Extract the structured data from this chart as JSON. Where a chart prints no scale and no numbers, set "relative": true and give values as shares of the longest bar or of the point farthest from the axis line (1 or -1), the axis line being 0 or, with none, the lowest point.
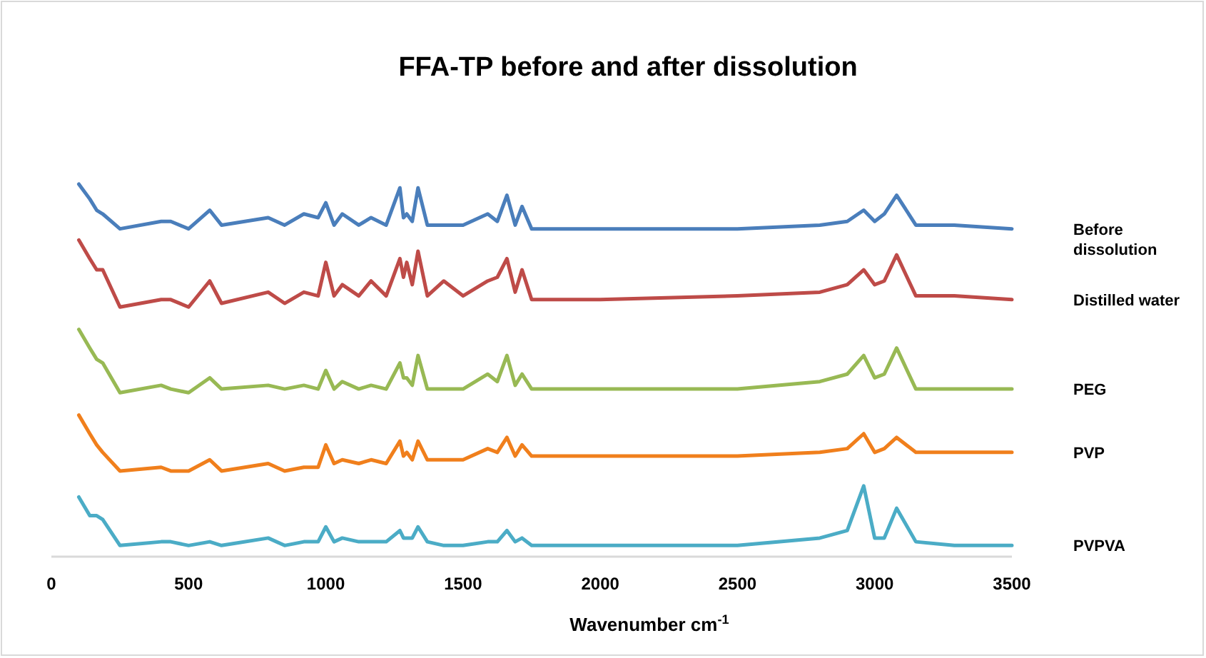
{
  "chart_data": {
    "type": "line",
    "title": "FFA-TP before and after dissolution",
    "xlabel": "Wavenumber cm$^{-1}$",
    "relative": true,
    "xlim": [
      0,
      3500
    ],
    "xticks": [
      0,
      500,
      1000,
      1500,
      2000,
      2500,
      3000,
      3500
    ],
    "grid": false,
    "marker": "none",
    "line_style": "solid",
    "x": [
      100,
      140,
      165,
      187,
      250,
      400,
      435,
      500,
      577,
      620,
      790,
      850,
      920,
      972,
      1000,
      1030,
      1060,
      1120,
      1165,
      1220,
      1270,
      1283,
      1295,
      1315,
      1336,
      1370,
      1430,
      1500,
      1590,
      1625,
      1660,
      1690,
      1715,
      1750,
      2000,
      2500,
      2800,
      2900,
      2960,
      3000,
      3035,
      3080,
      3150,
      3290,
      3500
    ],
    "series": [
      {
        "name": "Before dissolution",
        "color": "#4a7ebb",
        "values": [
          1.0,
          0.96,
          0.93,
          0.92,
          0.88,
          0.9,
          0.9,
          0.88,
          0.93,
          0.89,
          0.91,
          0.89,
          0.92,
          0.91,
          0.95,
          0.89,
          0.92,
          0.89,
          0.91,
          0.89,
          0.99,
          0.91,
          0.92,
          0.9,
          0.99,
          0.89,
          0.89,
          0.89,
          0.92,
          0.9,
          0.97,
          0.89,
          0.94,
          0.88,
          0.88,
          0.88,
          0.89,
          0.9,
          0.93,
          0.9,
          0.92,
          0.97,
          0.89,
          0.89,
          0.88
        ]
      },
      {
        "name": "Distilled water",
        "color": "#be4b48",
        "values": [
          0.85,
          0.8,
          0.77,
          0.77,
          0.67,
          0.69,
          0.69,
          0.67,
          0.74,
          0.68,
          0.71,
          0.68,
          0.71,
          0.7,
          0.79,
          0.7,
          0.73,
          0.7,
          0.74,
          0.7,
          0.8,
          0.75,
          0.79,
          0.73,
          0.82,
          0.7,
          0.74,
          0.7,
          0.74,
          0.75,
          0.8,
          0.71,
          0.77,
          0.69,
          0.69,
          0.7,
          0.71,
          0.73,
          0.77,
          0.73,
          0.74,
          0.81,
          0.7,
          0.7,
          0.69
        ]
      },
      {
        "name": "PEG",
        "color": "#98b954",
        "values": [
          0.61,
          0.56,
          0.53,
          0.52,
          0.44,
          0.46,
          0.45,
          0.44,
          0.48,
          0.45,
          0.46,
          0.45,
          0.46,
          0.45,
          0.5,
          0.45,
          0.47,
          0.45,
          0.46,
          0.45,
          0.52,
          0.48,
          0.48,
          0.46,
          0.54,
          0.45,
          0.45,
          0.45,
          0.49,
          0.47,
          0.54,
          0.46,
          0.49,
          0.45,
          0.45,
          0.45,
          0.47,
          0.49,
          0.54,
          0.48,
          0.49,
          0.56,
          0.45,
          0.45,
          0.45
        ]
      },
      {
        "name": "PVP",
        "color": "#f07f1c",
        "values": [
          0.38,
          0.33,
          0.3,
          0.28,
          0.23,
          0.24,
          0.23,
          0.23,
          0.26,
          0.23,
          0.25,
          0.23,
          0.24,
          0.24,
          0.3,
          0.25,
          0.26,
          0.25,
          0.26,
          0.25,
          0.31,
          0.27,
          0.28,
          0.26,
          0.31,
          0.26,
          0.26,
          0.26,
          0.29,
          0.28,
          0.32,
          0.27,
          0.3,
          0.27,
          0.27,
          0.27,
          0.28,
          0.29,
          0.33,
          0.28,
          0.29,
          0.32,
          0.28,
          0.28,
          0.28
        ]
      },
      {
        "name": "PVPVA",
        "color": "#4bacc6",
        "values": [
          0.16,
          0.11,
          0.11,
          0.1,
          0.03,
          0.04,
          0.04,
          0.03,
          0.04,
          0.03,
          0.05,
          0.03,
          0.04,
          0.04,
          0.08,
          0.04,
          0.05,
          0.04,
          0.04,
          0.04,
          0.07,
          0.05,
          0.05,
          0.05,
          0.08,
          0.04,
          0.03,
          0.03,
          0.04,
          0.04,
          0.07,
          0.04,
          0.05,
          0.03,
          0.03,
          0.03,
          0.05,
          0.07,
          0.19,
          0.05,
          0.05,
          0.13,
          0.04,
          0.03,
          0.03
        ]
      }
    ]
  }
}
